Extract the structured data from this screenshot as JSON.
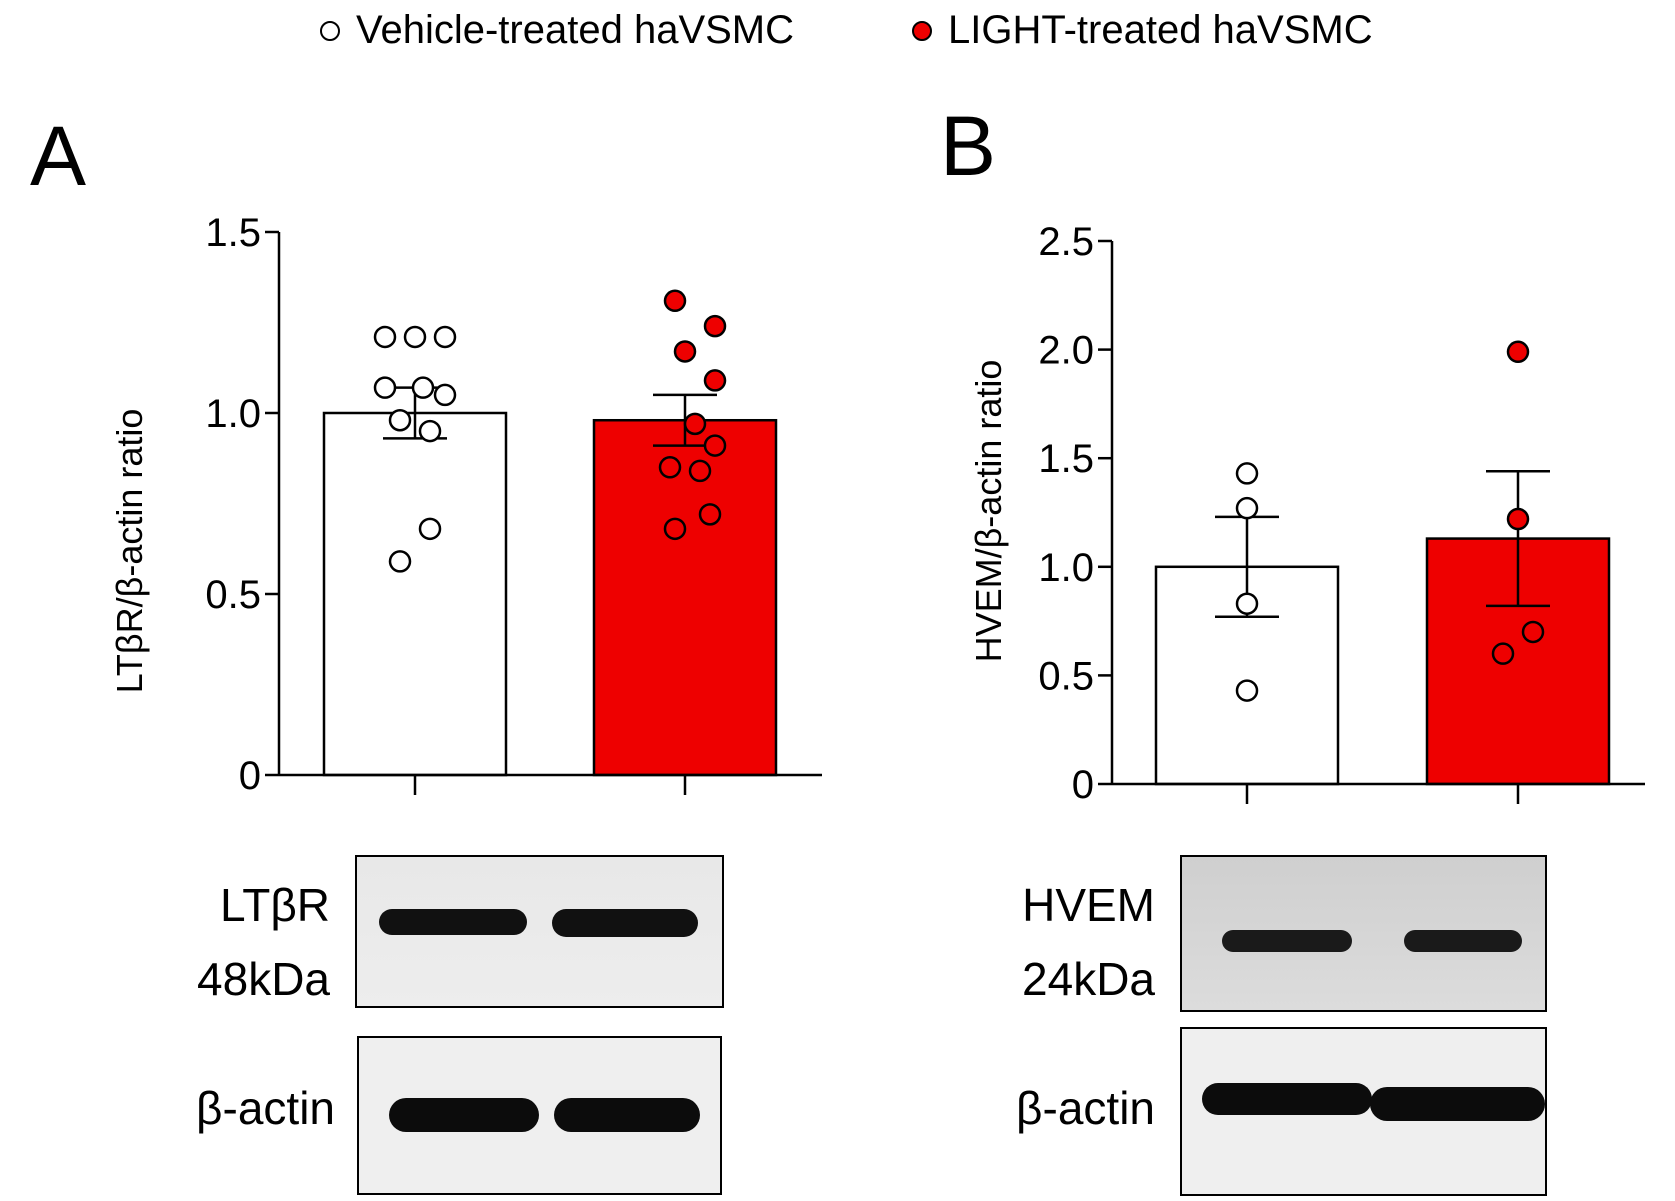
{
  "legend": {
    "vehicle": "Vehicle-treated haVSMC",
    "light": "LIGHT-treated  haVSMC"
  },
  "colors": {
    "vehicle_fill": "#ffffff",
    "light_fill": "#ee0000",
    "axis": "#000000"
  },
  "panels": [
    {
      "letter": "A",
      "ylabel": "LTβR/β-actin ratio",
      "blot_label": "LTβR",
      "blot_size": "48kDa",
      "loading_label": "β-actin"
    },
    {
      "letter": "B",
      "ylabel": "HVEM/β-actin ratio",
      "blot_label": "HVEM",
      "blot_size": "24kDa",
      "loading_label": "β-actin"
    }
  ],
  "chart_data": [
    {
      "type": "bar",
      "panel": "A",
      "ylabel": "LTβR/β-actin ratio",
      "ylim": [
        0,
        1.5
      ],
      "yticks": [
        0,
        0.5,
        1.0,
        1.5
      ],
      "yticklabels": [
        "0",
        "0.5",
        "1.0",
        "1.5"
      ],
      "categories": [
        "Vehicle-treated haVSMC",
        "LIGHT-treated  haVSMC"
      ],
      "series": [
        {
          "name": "Vehicle-treated haVSMC",
          "mean": 1.0,
          "sem": 0.07,
          "points": [
            1.21,
            1.21,
            1.21,
            1.07,
            1.07,
            1.05,
            0.98,
            0.95,
            0.68,
            0.59
          ]
        },
        {
          "name": "LIGHT-treated  haVSMC",
          "mean": 0.98,
          "sem": 0.07,
          "points": [
            1.31,
            1.24,
            1.17,
            1.09,
            0.97,
            0.91,
            0.85,
            0.84,
            0.72,
            0.68
          ]
        }
      ]
    },
    {
      "type": "bar",
      "panel": "B",
      "ylabel": "HVEM/β-actin ratio",
      "ylim": [
        0,
        2.5
      ],
      "yticks": [
        0,
        0.5,
        1.0,
        1.5,
        2.0,
        2.5
      ],
      "yticklabels": [
        "0",
        "0.5",
        "1.0",
        "1.5",
        "2.0",
        "2.5"
      ],
      "categories": [
        "Vehicle-treated haVSMC",
        "LIGHT-treated  haVSMC"
      ],
      "series": [
        {
          "name": "Vehicle-treated haVSMC",
          "mean": 1.0,
          "sem": 0.23,
          "points": [
            1.43,
            1.27,
            0.83,
            0.43
          ]
        },
        {
          "name": "LIGHT-treated  haVSMC",
          "mean": 1.13,
          "sem": 0.31,
          "points": [
            1.99,
            1.22,
            0.7,
            0.6
          ]
        }
      ]
    }
  ]
}
